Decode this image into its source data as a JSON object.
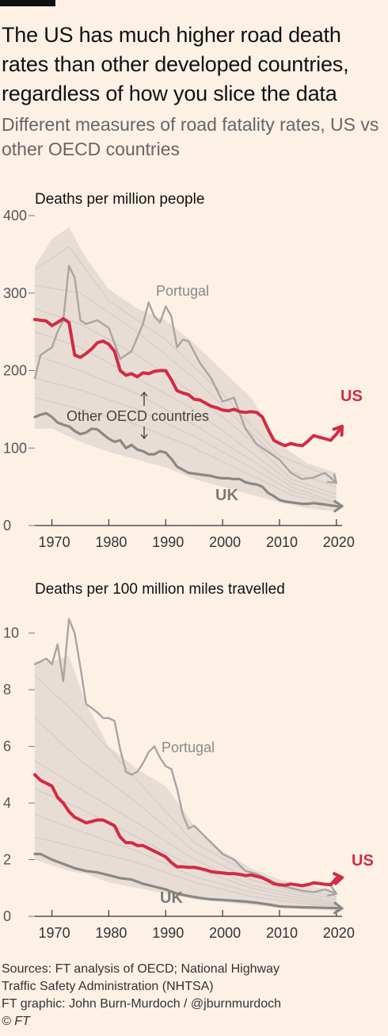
{
  "header": {
    "title": "The US has much higher road death rates than other developed countries, regardless of how you slice the data",
    "subtitle": "Different measures of road fatality rates, US vs other OECD countries"
  },
  "colors": {
    "background": "#fdf1e6",
    "us": "#d22b43",
    "uk": "#8a8886",
    "portugal": "#a8a5a3",
    "others": "#d5d0cb",
    "band": "#e8ddd4",
    "axis": "#333333"
  },
  "footer": {
    "line1": "Sources: FT analysis of OECD; National Highway",
    "line2": "Traffic Safety Administration (NHTSA)",
    "line3": "FT graphic: John Burn-Murdoch / @jburnmurdoch",
    "copyright": "© FT"
  },
  "chart_data": [
    {
      "type": "line",
      "title": "Deaths per million people",
      "xlim": [
        1967,
        2021
      ],
      "ylim": [
        0,
        400
      ],
      "yticks": [
        0,
        100,
        200,
        300,
        400
      ],
      "xticks": [
        1970,
        1980,
        1990,
        2000,
        2010,
        2020
      ],
      "others_label": "Other OECD countries",
      "band": {
        "x": [
          1967,
          1970,
          1973,
          1976,
          1980,
          1985,
          1990,
          1995,
          2000,
          2005,
          2010,
          2015,
          2020
        ],
        "upper": [
          335,
          370,
          385,
          345,
          305,
          280,
          265,
          235,
          200,
          165,
          105,
          80,
          68
        ],
        "lower": [
          125,
          125,
          115,
          105,
          95,
          85,
          75,
          60,
          50,
          40,
          30,
          22,
          18
        ]
      },
      "others": [
        {
          "x": [
            1967,
            1975,
            1985,
            1995,
            2005,
            2012,
            2020
          ],
          "y": [
            310,
            300,
            250,
            190,
            120,
            70,
            50
          ]
        },
        {
          "x": [
            1967,
            1975,
            1985,
            1995,
            2005,
            2012,
            2020
          ],
          "y": [
            280,
            260,
            220,
            170,
            110,
            60,
            40
          ]
        },
        {
          "x": [
            1967,
            1975,
            1985,
            1995,
            2005,
            2012,
            2020
          ],
          "y": [
            250,
            230,
            190,
            150,
            95,
            55,
            35
          ]
        },
        {
          "x": [
            1967,
            1975,
            1985,
            1995,
            2005,
            2012,
            2020
          ],
          "y": [
            220,
            200,
            170,
            130,
            85,
            50,
            30
          ]
        },
        {
          "x": [
            1967,
            1975,
            1985,
            1995,
            2005,
            2012,
            2020
          ],
          "y": [
            190,
            175,
            150,
            115,
            75,
            45,
            28
          ]
        },
        {
          "x": [
            1967,
            1975,
            1985,
            1995,
            2005,
            2012,
            2020
          ],
          "y": [
            165,
            150,
            130,
            100,
            65,
            40,
            25
          ]
        },
        {
          "x": [
            1967,
            1973,
            1980,
            1990,
            2000,
            2010,
            2020
          ],
          "y": [
            330,
            360,
            290,
            240,
            170,
            90,
            60
          ]
        }
      ],
      "series": [
        {
          "name": "Portugal",
          "x": [
            1967,
            1968,
            1970,
            1971,
            1972,
            1973,
            1974,
            1975,
            1976,
            1978,
            1980,
            1982,
            1984,
            1986,
            1987,
            1988,
            1989,
            1990,
            1991,
            1992,
            1993,
            1994,
            1996,
            1998,
            2000,
            2002,
            2004,
            2006,
            2008,
            2010,
            2012,
            2014,
            2016,
            2018,
            2020
          ],
          "y": [
            190,
            220,
            230,
            250,
            265,
            335,
            320,
            265,
            260,
            265,
            255,
            215,
            225,
            260,
            288,
            270,
            262,
            283,
            270,
            230,
            240,
            238,
            210,
            190,
            160,
            165,
            125,
            105,
            95,
            85,
            68,
            60,
            62,
            68,
            55
          ]
        },
        {
          "name": "US",
          "x": [
            1967,
            1968,
            1969,
            1970,
            1971,
            1972,
            1973,
            1974,
            1975,
            1976,
            1977,
            1978,
            1979,
            1980,
            1981,
            1982,
            1983,
            1984,
            1985,
            1986,
            1987,
            1988,
            1989,
            1990,
            1991,
            1992,
            1993,
            1994,
            1995,
            1996,
            1997,
            1998,
            1999,
            2000,
            2001,
            2002,
            2003,
            2004,
            2005,
            2006,
            2007,
            2008,
            2009,
            2010,
            2011,
            2012,
            2013,
            2014,
            2015,
            2016,
            2017,
            2018,
            2019,
            2020,
            2021
          ],
          "y": [
            266,
            265,
            264,
            258,
            262,
            267,
            262,
            220,
            217,
            222,
            228,
            236,
            238,
            234,
            225,
            200,
            194,
            196,
            192,
            197,
            196,
            199,
            200,
            200,
            188,
            174,
            171,
            169,
            163,
            162,
            158,
            154,
            152,
            149,
            148,
            150,
            147,
            146,
            147,
            146,
            140,
            124,
            110,
            106,
            103,
            106,
            104,
            103,
            109,
            116,
            114,
            112,
            110,
            118,
            128
          ]
        },
        {
          "name": "UK",
          "x": [
            1967,
            1968,
            1969,
            1970,
            1971,
            1972,
            1973,
            1974,
            1975,
            1976,
            1977,
            1978,
            1979,
            1980,
            1981,
            1982,
            1983,
            1984,
            1985,
            1986,
            1987,
            1988,
            1989,
            1990,
            1991,
            1992,
            1993,
            1994,
            1995,
            1996,
            1997,
            1998,
            1999,
            2000,
            2001,
            2002,
            2003,
            2004,
            2005,
            2006,
            2007,
            2008,
            2009,
            2010,
            2011,
            2012,
            2013,
            2014,
            2015,
            2016,
            2017,
            2018,
            2019,
            2020,
            2021
          ],
          "y": [
            140,
            143,
            145,
            140,
            133,
            130,
            128,
            122,
            118,
            120,
            125,
            124,
            118,
            112,
            108,
            110,
            100,
            104,
            98,
            96,
            92,
            92,
            96,
            94,
            86,
            76,
            72,
            68,
            67,
            66,
            65,
            64,
            62,
            61,
            61,
            60,
            60,
            56,
            54,
            53,
            50,
            42,
            38,
            33,
            31,
            30,
            29,
            28,
            28,
            29,
            28,
            27,
            26,
            25,
            25
          ]
        }
      ],
      "labels": {
        "portugal": "Portugal",
        "us": "US",
        "uk": "UK"
      }
    },
    {
      "type": "line",
      "title": "Deaths per 100 million miles travelled",
      "xlim": [
        1967,
        2021
      ],
      "ylim": [
        0,
        11
      ],
      "yticks": [
        0,
        2,
        4,
        6,
        8,
        10
      ],
      "xticks": [
        1970,
        1980,
        1990,
        2000,
        2010,
        2020
      ],
      "band": {
        "x": [
          1967,
          1970,
          1973,
          1976,
          1980,
          1985,
          1990,
          1995,
          2000,
          2005,
          2010,
          2015,
          2020
        ],
        "upper": [
          9.0,
          9.0,
          9.2,
          7.5,
          6.0,
          5.2,
          4.6,
          3.2,
          2.3,
          1.7,
          1.3,
          1.1,
          0.9
        ],
        "lower": [
          2.0,
          1.8,
          1.6,
          1.5,
          1.2,
          1.0,
          0.8,
          0.6,
          0.5,
          0.4,
          0.3,
          0.25,
          0.2
        ]
      },
      "others": [
        {
          "x": [
            1967,
            1975,
            1985,
            1995,
            2005,
            2012,
            2020
          ],
          "y": [
            8.5,
            7.0,
            4.8,
            2.6,
            1.5,
            1.0,
            0.7
          ]
        },
        {
          "x": [
            1967,
            1975,
            1985,
            1995,
            2005,
            2012,
            2020
          ],
          "y": [
            7.0,
            5.5,
            4.0,
            2.3,
            1.3,
            0.9,
            0.6
          ]
        },
        {
          "x": [
            1967,
            1975,
            1985,
            1995,
            2005,
            2012,
            2020
          ],
          "y": [
            5.5,
            4.5,
            3.3,
            2.0,
            1.1,
            0.8,
            0.5
          ]
        },
        {
          "x": [
            1967,
            1975,
            1985,
            1995,
            2005,
            2012,
            2020
          ],
          "y": [
            4.5,
            3.8,
            2.8,
            1.7,
            1.0,
            0.7,
            0.45
          ]
        },
        {
          "x": [
            1967,
            1975,
            1985,
            1995,
            2005,
            2012,
            2020
          ],
          "y": [
            3.6,
            3.0,
            2.3,
            1.4,
            0.85,
            0.6,
            0.4
          ]
        },
        {
          "x": [
            1967,
            1975,
            1985,
            1995,
            2005,
            2012,
            2020
          ],
          "y": [
            2.8,
            2.4,
            1.9,
            1.2,
            0.7,
            0.5,
            0.35
          ]
        }
      ],
      "series": [
        {
          "name": "Portugal",
          "x": [
            1967,
            1968,
            1969,
            1970,
            1971,
            1972,
            1973,
            1974,
            1975,
            1976,
            1978,
            1979,
            1980,
            1981,
            1982,
            1983,
            1984,
            1985,
            1986,
            1987,
            1988,
            1989,
            1990,
            1991,
            1992,
            1993,
            1994,
            1995,
            1996,
            1997,
            1998,
            2000,
            2002,
            2004,
            2006,
            2008,
            2010,
            2012,
            2014,
            2016,
            2018,
            2020
          ],
          "y": [
            8.9,
            9.0,
            9.1,
            8.9,
            9.6,
            8.3,
            10.5,
            10.0,
            8.8,
            7.5,
            7.2,
            7.0,
            7.0,
            6.9,
            5.9,
            5.1,
            5.0,
            5.1,
            5.4,
            5.8,
            6.0,
            5.6,
            5.3,
            5.2,
            4.5,
            3.6,
            3.1,
            3.2,
            3.0,
            2.8,
            2.6,
            2.2,
            2.0,
            1.6,
            1.5,
            1.3,
            1.1,
            1.0,
            0.9,
            0.85,
            0.95,
            0.8
          ]
        },
        {
          "name": "US",
          "x": [
            1967,
            1968,
            1969,
            1970,
            1971,
            1972,
            1973,
            1974,
            1975,
            1976,
            1977,
            1978,
            1979,
            1980,
            1981,
            1982,
            1983,
            1984,
            1985,
            1986,
            1987,
            1988,
            1989,
            1990,
            1991,
            1992,
            1993,
            1994,
            1995,
            1996,
            1997,
            1998,
            1999,
            2000,
            2001,
            2002,
            2003,
            2004,
            2005,
            2006,
            2007,
            2008,
            2009,
            2010,
            2011,
            2012,
            2013,
            2014,
            2015,
            2016,
            2017,
            2018,
            2019,
            2020,
            2021
          ],
          "y": [
            5.0,
            4.8,
            4.7,
            4.6,
            4.2,
            4.0,
            3.7,
            3.5,
            3.4,
            3.3,
            3.35,
            3.4,
            3.4,
            3.3,
            3.2,
            2.8,
            2.6,
            2.6,
            2.5,
            2.5,
            2.4,
            2.3,
            2.2,
            2.1,
            1.9,
            1.75,
            1.75,
            1.73,
            1.73,
            1.69,
            1.64,
            1.58,
            1.55,
            1.53,
            1.51,
            1.51,
            1.48,
            1.44,
            1.46,
            1.41,
            1.36,
            1.26,
            1.15,
            1.11,
            1.1,
            1.14,
            1.11,
            1.08,
            1.12,
            1.18,
            1.16,
            1.13,
            1.11,
            1.34,
            1.37
          ]
        },
        {
          "name": "UK",
          "x": [
            1967,
            1968,
            1970,
            1972,
            1974,
            1976,
            1978,
            1980,
            1982,
            1984,
            1986,
            1988,
            1990,
            1992,
            1994,
            1996,
            1998,
            2000,
            2002,
            2004,
            2006,
            2008,
            2010,
            2012,
            2014,
            2016,
            2018,
            2020,
            2021
          ],
          "y": [
            2.2,
            2.2,
            2.0,
            1.85,
            1.7,
            1.6,
            1.55,
            1.45,
            1.35,
            1.3,
            1.15,
            1.05,
            0.95,
            0.8,
            0.72,
            0.65,
            0.6,
            0.58,
            0.55,
            0.52,
            0.48,
            0.42,
            0.35,
            0.33,
            0.32,
            0.31,
            0.3,
            0.29,
            0.28
          ]
        }
      ],
      "labels": {
        "portugal": "Portugal",
        "us": "US",
        "uk": "UK"
      }
    }
  ]
}
